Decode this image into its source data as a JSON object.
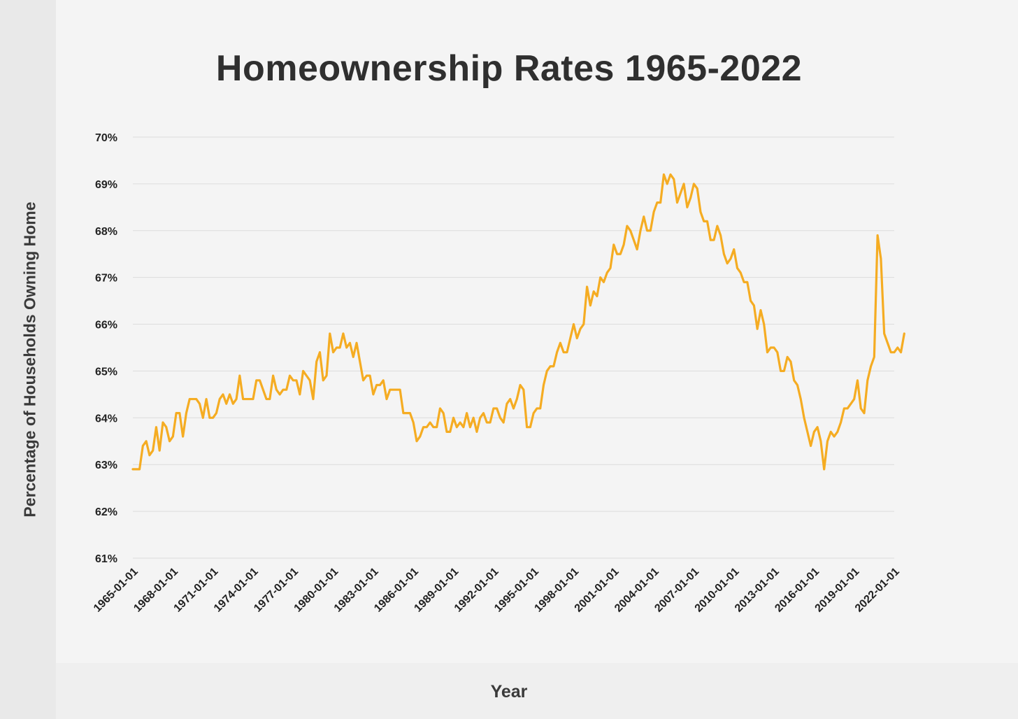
{
  "chart_data": {
    "type": "line",
    "title": "Homeownership Rates 1965-2022",
    "xlabel": "Year",
    "ylabel": "Percentage of Households Owning Home",
    "ylim": [
      61,
      70
    ],
    "y_ticks": [
      "61%",
      "62%",
      "63%",
      "64%",
      "65%",
      "66%",
      "67%",
      "68%",
      "69%",
      "70%"
    ],
    "x_ticks": [
      "1965-01-01",
      "1968-01-01",
      "1971-01-01",
      "1974-01-01",
      "1977-01-01",
      "1980-01-01",
      "1983-01-01",
      "1986-01-01",
      "1989-01-01",
      "1992-01-01",
      "1995-01-01",
      "1998-01-01",
      "2001-01-01",
      "2004-01-01",
      "2007-01-01",
      "2010-01-01",
      "2013-01-01",
      "2016-01-01",
      "2019-01-01",
      "2022-01-01"
    ],
    "grid": true,
    "line_color": "#f5ac22",
    "series": [
      {
        "x_start": "1965-01-01",
        "frequency": "quarterly",
        "values": [
          62.9,
          62.9,
          62.9,
          63.4,
          63.5,
          63.2,
          63.3,
          63.8,
          63.3,
          63.9,
          63.8,
          63.5,
          63.6,
          64.1,
          64.1,
          63.6,
          64.1,
          64.4,
          64.4,
          64.4,
          64.3,
          64.0,
          64.4,
          64.0,
          64.0,
          64.1,
          64.4,
          64.5,
          64.3,
          64.5,
          64.3,
          64.4,
          64.9,
          64.4,
          64.4,
          64.4,
          64.4,
          64.8,
          64.8,
          64.6,
          64.4,
          64.4,
          64.9,
          64.6,
          64.5,
          64.6,
          64.6,
          64.9,
          64.8,
          64.8,
          64.5,
          65.0,
          64.9,
          64.8,
          64.4,
          65.2,
          65.4,
          64.8,
          64.9,
          65.8,
          65.4,
          65.5,
          65.5,
          65.8,
          65.5,
          65.6,
          65.3,
          65.6,
          65.2,
          64.8,
          64.9,
          64.9,
          64.5,
          64.7,
          64.7,
          64.8,
          64.4,
          64.6,
          64.6,
          64.6,
          64.6,
          64.1,
          64.1,
          64.1,
          63.9,
          63.5,
          63.6,
          63.8,
          63.8,
          63.9,
          63.8,
          63.8,
          64.2,
          64.1,
          63.7,
          63.7,
          64.0,
          63.8,
          63.9,
          63.8,
          64.1,
          63.8,
          64.0,
          63.7,
          64.0,
          64.1,
          63.9,
          63.9,
          64.2,
          64.2,
          64.0,
          63.9,
          64.3,
          64.4,
          64.2,
          64.4,
          64.7,
          64.6,
          63.8,
          63.8,
          64.1,
          64.2,
          64.2,
          64.7,
          65.0,
          65.1,
          65.1,
          65.4,
          65.6,
          65.4,
          65.4,
          65.7,
          66.0,
          65.7,
          65.9,
          66.0,
          66.8,
          66.4,
          66.7,
          66.6,
          67.0,
          66.9,
          67.1,
          67.2,
          67.7,
          67.5,
          67.5,
          67.7,
          68.1,
          68.0,
          67.8,
          67.6,
          68.0,
          68.3,
          68.0,
          68.0,
          68.4,
          68.6,
          68.6,
          69.2,
          69.0,
          69.2,
          69.1,
          68.6,
          68.8,
          69.0,
          68.5,
          68.7,
          69.0,
          68.9,
          68.4,
          68.2,
          68.2,
          67.8,
          67.8,
          68.1,
          67.9,
          67.5,
          67.3,
          67.4,
          67.6,
          67.2,
          67.1,
          66.9,
          66.9,
          66.5,
          66.4,
          65.9,
          66.3,
          66.0,
          65.4,
          65.5,
          65.5,
          65.4,
          65.0,
          65.0,
          65.3,
          65.2,
          64.8,
          64.7,
          64.4,
          64.0,
          63.7,
          63.4,
          63.7,
          63.8,
          63.5,
          62.9,
          63.5,
          63.7,
          63.6,
          63.7,
          63.9,
          64.2,
          64.2,
          64.3,
          64.4,
          64.8,
          64.2,
          64.1,
          64.8,
          65.1,
          65.3,
          67.9,
          67.4,
          65.8,
          65.6,
          65.4,
          65.4,
          65.5,
          65.4,
          65.8
        ]
      }
    ]
  }
}
